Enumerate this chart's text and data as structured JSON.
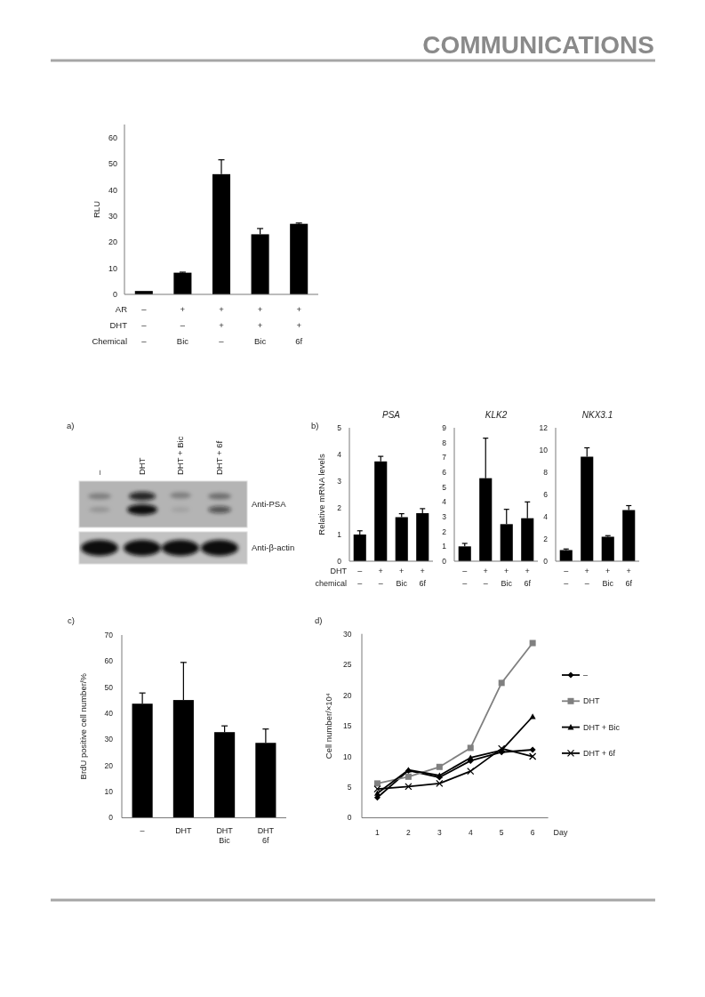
{
  "chart_data": [
    {
      "type": "other",
      "title": "COMMUNICATIONS"
    },
    {
      "type": "bar",
      "categories": [
        "–\n–\n–",
        "+\n–\nBic",
        "+\n+\n–",
        "+\n+\nBic",
        "+\n+\n6f"
      ],
      "xlabel": "AR\nDHT\nChemical",
      "ylabel": "RLU",
      "values": [
        1.3,
        8.3,
        46.0,
        23.0,
        27.0
      ],
      "errors": [
        null,
        [
          8.3,
          8.5
        ],
        [
          46.0,
          51.5
        ],
        [
          23.0,
          25.2
        ],
        [
          27.0,
          27.3
        ]
      ],
      "color": "#000000",
      "ylim": [
        0,
        65
      ],
      "yticks": [
        0,
        10,
        20,
        30,
        40,
        50,
        60
      ]
    },
    {
      "type": "other",
      "categories": [
        "–",
        "DHT",
        "DHT + Bic",
        "DHT + 6f"
      ],
      "y_categories": [
        "Anti-PSA",
        "Anti-β-actin"
      ],
      "annotations": [
        "a)"
      ]
    },
    {
      "type": "bar",
      "title": "PSA",
      "categories": [
        "–\n–",
        "+\n–",
        "+\nBic",
        "+\n6f"
      ],
      "xlabel": "DHT\nchemical",
      "ylabel": "Relative mRNA levels",
      "annotations": [
        "b)"
      ],
      "values": [
        1.0,
        3.74,
        1.65,
        1.8
      ],
      "errors": [
        [
          1.0,
          1.14
        ],
        [
          3.74,
          3.93
        ],
        [
          1.65,
          1.78
        ],
        [
          1.8,
          1.97
        ]
      ],
      "color": "#000000",
      "ylim": [
        0,
        5
      ],
      "yticks": [
        0,
        1,
        2,
        3,
        4,
        5
      ]
    },
    {
      "type": "bar",
      "title": "KLK2",
      "categories": [
        "–\n–",
        "+\n–",
        "+\nBic",
        "+\n6f"
      ],
      "values": [
        1.0,
        5.6,
        2.5,
        2.9
      ],
      "errors": [
        [
          1.0,
          1.2
        ],
        [
          5.6,
          8.3
        ],
        [
          2.5,
          3.5
        ],
        [
          2.9,
          4.0
        ]
      ],
      "color": "#000000",
      "ylim": [
        0,
        9
      ],
      "yticks": [
        0,
        1,
        2,
        3,
        4,
        5,
        6,
        7,
        8,
        9
      ]
    },
    {
      "type": "bar",
      "title": "NKX3.1",
      "categories": [
        "–\n–",
        "+\n–",
        "+\nBic",
        "+\n6f"
      ],
      "values": [
        1.0,
        9.4,
        2.2,
        4.6
      ],
      "errors": [
        [
          1.0,
          1.1
        ],
        [
          9.4,
          10.2
        ],
        [
          2.2,
          2.3
        ],
        [
          4.6,
          5.0
        ]
      ],
      "color": "#000000",
      "ylim": [
        0,
        12
      ],
      "yticks": [
        0,
        2,
        4,
        6,
        8,
        10,
        12
      ]
    },
    {
      "type": "bar",
      "categories": [
        "–",
        "DHT",
        "DHT\nBic",
        "DHT\n6f"
      ],
      "ylabel": "BrdU positive cell number/%",
      "annotations": [
        "c)"
      ],
      "values": [
        43.7,
        45.1,
        32.8,
        28.7
      ],
      "errors": [
        [
          43.7,
          47.8
        ],
        [
          45.1,
          59.5
        ],
        [
          32.8,
          35.2
        ],
        [
          28.7,
          34.0
        ]
      ],
      "color": "#000000",
      "ylim": [
        0,
        70
      ],
      "yticks": [
        0,
        10,
        20,
        30,
        40,
        50,
        60,
        70
      ]
    },
    {
      "type": "line",
      "x": [
        1,
        2,
        3,
        4,
        5,
        6
      ],
      "xlim": [
        0.5,
        6.5
      ],
      "xticks": [
        1,
        2,
        3,
        4,
        5,
        6
      ],
      "xlabel": "Day",
      "ylabel": "Cell number/×10⁴",
      "ylim": [
        0,
        30
      ],
      "yticks": [
        0,
        5,
        10,
        15,
        20,
        25,
        30
      ],
      "legend": "right",
      "annotations": [
        "d)"
      ],
      "series": [
        {
          "name": "–",
          "color": "#000000",
          "marker": "diamond",
          "values": [
            3.3,
            7.7,
            6.6,
            9.3,
            10.7,
            11.1
          ]
        },
        {
          "name": "DHT",
          "color": "#808080",
          "marker": "square",
          "values": [
            5.6,
            6.7,
            8.3,
            11.4,
            22.0,
            28.5
          ]
        },
        {
          "name": "DHT + Bic",
          "color": "#000000",
          "marker": "triangle",
          "values": [
            4.0,
            7.8,
            6.9,
            9.8,
            11.0,
            16.5
          ]
        },
        {
          "name": "DHT + 6f",
          "color": "#000000",
          "marker": "cross",
          "values": [
            4.7,
            5.1,
            5.6,
            7.6,
            11.3,
            10.0
          ]
        }
      ]
    }
  ]
}
